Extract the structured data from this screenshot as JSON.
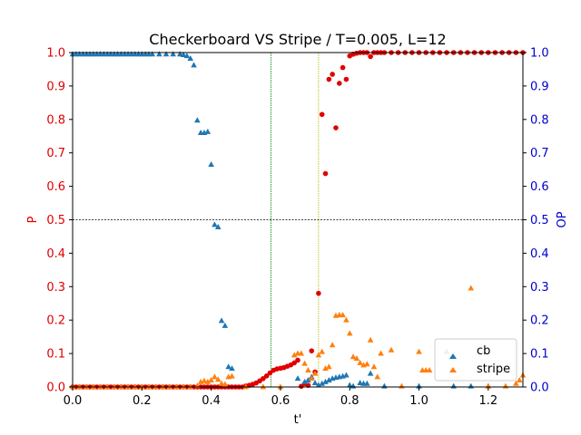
{
  "chart_data": {
    "type": "scatter",
    "title": "Checkerboard VS Stripe / T=0.005, L=12",
    "xlabel": "t'",
    "ylabel_left": "P",
    "ylabel_right": "OP",
    "xlim": [
      0,
      1.3
    ],
    "ylim_left": [
      0,
      1
    ],
    "ylim_right": [
      0,
      1
    ],
    "x_ticks": [
      "0.0",
      "0.2",
      "0.4",
      "0.6",
      "0.8",
      "1.0",
      "1.2"
    ],
    "x_tick_values": [
      0,
      0.2,
      0.4,
      0.6,
      0.8,
      1.0,
      1.2
    ],
    "y_ticks": [
      "0.0",
      "0.1",
      "0.2",
      "0.3",
      "0.4",
      "0.5",
      "0.6",
      "0.7",
      "0.8",
      "0.9",
      "1.0"
    ],
    "y_tick_values": [
      0,
      0.1,
      0.2,
      0.3,
      0.4,
      0.5,
      0.6,
      0.7,
      0.8,
      0.9,
      1.0
    ],
    "grid": false,
    "legend": {
      "placement": "lower-right",
      "entries": [
        "cb",
        "stripe"
      ]
    },
    "colors": {
      "P": "#e00000",
      "OP_axis": "#0000cc",
      "cb": "#1f77b4",
      "stripe": "#ff7f0e",
      "hline": "#000000",
      "vline_green": "#008000",
      "vline_olive": "#b5b500"
    },
    "reference_lines": {
      "hline_y": 0.5,
      "vline_green_x": 0.573,
      "vline_olive_x": 0.71
    },
    "series": [
      {
        "name": "",
        "axis": "left",
        "marker": "circle",
        "color": "#e00000",
        "points": [
          [
            0.0,
            0
          ],
          [
            0.01,
            0
          ],
          [
            0.02,
            0
          ],
          [
            0.03,
            0
          ],
          [
            0.04,
            0
          ],
          [
            0.05,
            0
          ],
          [
            0.06,
            0
          ],
          [
            0.07,
            0
          ],
          [
            0.08,
            0
          ],
          [
            0.09,
            0
          ],
          [
            0.1,
            0
          ],
          [
            0.11,
            0
          ],
          [
            0.12,
            0
          ],
          [
            0.13,
            0
          ],
          [
            0.14,
            0
          ],
          [
            0.15,
            0
          ],
          [
            0.16,
            0
          ],
          [
            0.17,
            0
          ],
          [
            0.18,
            0
          ],
          [
            0.19,
            0
          ],
          [
            0.2,
            0
          ],
          [
            0.21,
            0
          ],
          [
            0.22,
            0
          ],
          [
            0.23,
            0
          ],
          [
            0.24,
            0
          ],
          [
            0.25,
            0
          ],
          [
            0.26,
            0
          ],
          [
            0.27,
            0
          ],
          [
            0.28,
            0
          ],
          [
            0.29,
            0
          ],
          [
            0.3,
            0
          ],
          [
            0.31,
            0
          ],
          [
            0.32,
            0
          ],
          [
            0.33,
            0
          ],
          [
            0.34,
            0
          ],
          [
            0.35,
            0
          ],
          [
            0.36,
            0
          ],
          [
            0.37,
            0
          ],
          [
            0.38,
            0
          ],
          [
            0.39,
            0
          ],
          [
            0.4,
            0
          ],
          [
            0.41,
            0
          ],
          [
            0.42,
            0
          ],
          [
            0.43,
            0
          ],
          [
            0.44,
            0
          ],
          [
            0.45,
            0
          ],
          [
            0.46,
            0
          ],
          [
            0.47,
            0
          ],
          [
            0.48,
            0
          ],
          [
            0.49,
            0
          ],
          [
            0.5,
            0.003
          ],
          [
            0.51,
            0.005
          ],
          [
            0.52,
            0.008
          ],
          [
            0.53,
            0.012
          ],
          [
            0.54,
            0.018
          ],
          [
            0.55,
            0.025
          ],
          [
            0.56,
            0.033
          ],
          [
            0.57,
            0.042
          ],
          [
            0.58,
            0.05
          ],
          [
            0.59,
            0.054
          ],
          [
            0.6,
            0.056
          ],
          [
            0.61,
            0.058
          ],
          [
            0.62,
            0.062
          ],
          [
            0.63,
            0.066
          ],
          [
            0.64,
            0.072
          ],
          [
            0.65,
            0.08
          ],
          [
            0.66,
            0.002
          ],
          [
            0.67,
            0.01
          ],
          [
            0.68,
            0.005
          ],
          [
            0.69,
            0.108
          ],
          [
            0.7,
            0.045
          ],
          [
            0.71,
            0.28
          ],
          [
            0.72,
            0.815
          ],
          [
            0.73,
            0.638
          ],
          [
            0.74,
            0.92
          ],
          [
            0.75,
            0.935
          ],
          [
            0.76,
            0.775
          ],
          [
            0.77,
            0.908
          ],
          [
            0.78,
            0.955
          ],
          [
            0.79,
            0.92
          ],
          [
            0.8,
            0.99
          ],
          [
            0.81,
            0.995
          ],
          [
            0.82,
            0.998
          ],
          [
            0.83,
            1.0
          ],
          [
            0.84,
            1.0
          ],
          [
            0.85,
            1.0
          ],
          [
            0.86,
            0.988
          ],
          [
            0.87,
            1.0
          ],
          [
            0.88,
            1.0
          ],
          [
            0.89,
            1.0
          ],
          [
            0.9,
            1.0
          ],
          [
            0.92,
            1.0
          ],
          [
            0.94,
            1.0
          ],
          [
            0.96,
            1.0
          ],
          [
            0.98,
            1.0
          ],
          [
            1.0,
            1.0
          ],
          [
            1.02,
            1.0
          ],
          [
            1.04,
            1.0
          ],
          [
            1.06,
            1.0
          ],
          [
            1.08,
            1.0
          ],
          [
            1.1,
            1.0
          ],
          [
            1.12,
            1.0
          ],
          [
            1.14,
            1.0
          ],
          [
            1.16,
            1.0
          ],
          [
            1.18,
            1.0
          ],
          [
            1.2,
            1.0
          ],
          [
            1.22,
            1.0
          ],
          [
            1.24,
            1.0
          ],
          [
            1.26,
            1.0
          ],
          [
            1.28,
            1.0
          ],
          [
            1.3,
            1.0
          ]
        ]
      },
      {
        "name": "cb",
        "axis": "right",
        "marker": "triangle",
        "color": "#1f77b4",
        "points": [
          [
            0.0,
            0.995
          ],
          [
            0.01,
            0.995
          ],
          [
            0.02,
            0.995
          ],
          [
            0.03,
            0.995
          ],
          [
            0.04,
            0.995
          ],
          [
            0.05,
            0.995
          ],
          [
            0.06,
            0.995
          ],
          [
            0.07,
            0.995
          ],
          [
            0.08,
            0.995
          ],
          [
            0.09,
            0.995
          ],
          [
            0.1,
            0.995
          ],
          [
            0.11,
            0.995
          ],
          [
            0.12,
            0.995
          ],
          [
            0.13,
            0.995
          ],
          [
            0.14,
            0.995
          ],
          [
            0.15,
            0.995
          ],
          [
            0.16,
            0.995
          ],
          [
            0.17,
            0.995
          ],
          [
            0.18,
            0.995
          ],
          [
            0.19,
            0.995
          ],
          [
            0.2,
            0.995
          ],
          [
            0.21,
            0.995
          ],
          [
            0.22,
            0.995
          ],
          [
            0.23,
            0.995
          ],
          [
            0.25,
            0.995
          ],
          [
            0.27,
            0.995
          ],
          [
            0.29,
            0.995
          ],
          [
            0.31,
            0.995
          ],
          [
            0.32,
            0.993
          ],
          [
            0.33,
            0.99
          ],
          [
            0.34,
            0.982
          ],
          [
            0.35,
            0.962
          ],
          [
            0.36,
            0.797
          ],
          [
            0.37,
            0.76
          ],
          [
            0.38,
            0.76
          ],
          [
            0.39,
            0.763
          ],
          [
            0.4,
            0.665
          ],
          [
            0.41,
            0.485
          ],
          [
            0.42,
            0.478
          ],
          [
            0.43,
            0.198
          ],
          [
            0.44,
            0.183
          ],
          [
            0.45,
            0.06
          ],
          [
            0.46,
            0.055
          ],
          [
            0.65,
            0.025
          ],
          [
            0.67,
            0.015
          ],
          [
            0.68,
            0.02
          ],
          [
            0.69,
            0.03
          ],
          [
            0.7,
            0.012
          ],
          [
            0.71,
            0.005
          ],
          [
            0.72,
            0.01
          ],
          [
            0.73,
            0.015
          ],
          [
            0.74,
            0.02
          ],
          [
            0.75,
            0.025
          ],
          [
            0.76,
            0.028
          ],
          [
            0.77,
            0.03
          ],
          [
            0.78,
            0.032
          ],
          [
            0.79,
            0.035
          ],
          [
            0.8,
            0.005
          ],
          [
            0.81,
            0.002
          ],
          [
            0.83,
            0.012
          ],
          [
            0.84,
            0.01
          ],
          [
            0.85,
            0.01
          ],
          [
            0.86,
            0.04
          ],
          [
            0.9,
            0.002
          ],
          [
            1.0,
            0.002
          ],
          [
            1.1,
            0.002
          ],
          [
            1.15,
            0.002
          ],
          [
            1.2,
            0.002
          ]
        ]
      },
      {
        "name": "stripe",
        "axis": "right",
        "marker": "triangle",
        "color": "#ff7f0e",
        "points": [
          [
            0.0,
            0
          ],
          [
            0.02,
            0
          ],
          [
            0.04,
            0
          ],
          [
            0.06,
            0
          ],
          [
            0.08,
            0
          ],
          [
            0.1,
            0
          ],
          [
            0.12,
            0
          ],
          [
            0.14,
            0
          ],
          [
            0.16,
            0
          ],
          [
            0.18,
            0
          ],
          [
            0.2,
            0
          ],
          [
            0.22,
            0
          ],
          [
            0.24,
            0
          ],
          [
            0.26,
            0
          ],
          [
            0.28,
            0
          ],
          [
            0.3,
            0
          ],
          [
            0.32,
            0
          ],
          [
            0.34,
            0
          ],
          [
            0.36,
            0.003
          ],
          [
            0.37,
            0.015
          ],
          [
            0.38,
            0.018
          ],
          [
            0.39,
            0.015
          ],
          [
            0.4,
            0.02
          ],
          [
            0.41,
            0.03
          ],
          [
            0.42,
            0.022
          ],
          [
            0.43,
            0.01
          ],
          [
            0.44,
            0.008
          ],
          [
            0.45,
            0.03
          ],
          [
            0.46,
            0.032
          ],
          [
            0.5,
            0
          ],
          [
            0.55,
            0
          ],
          [
            0.6,
            0
          ],
          [
            0.64,
            0.095
          ],
          [
            0.65,
            0.1
          ],
          [
            0.66,
            0.1
          ],
          [
            0.67,
            0.07
          ],
          [
            0.68,
            0.05
          ],
          [
            0.69,
            0.025
          ],
          [
            0.7,
            0.04
          ],
          [
            0.71,
            0.095
          ],
          [
            0.72,
            0.105
          ],
          [
            0.73,
            0.055
          ],
          [
            0.74,
            0.06
          ],
          [
            0.75,
            0.125
          ],
          [
            0.76,
            0.213
          ],
          [
            0.77,
            0.215
          ],
          [
            0.78,
            0.215
          ],
          [
            0.79,
            0.2
          ],
          [
            0.8,
            0.16
          ],
          [
            0.81,
            0.09
          ],
          [
            0.82,
            0.085
          ],
          [
            0.83,
            0.072
          ],
          [
            0.84,
            0.065
          ],
          [
            0.85,
            0.068
          ],
          [
            0.86,
            0.14
          ],
          [
            0.87,
            0.06
          ],
          [
            0.88,
            0.03
          ],
          [
            0.89,
            0.1
          ],
          [
            0.92,
            0.11
          ],
          [
            0.95,
            0.002
          ],
          [
            1.0,
            0.105
          ],
          [
            1.01,
            0.05
          ],
          [
            1.02,
            0.05
          ],
          [
            1.03,
            0.05
          ],
          [
            1.08,
            0.105
          ],
          [
            1.15,
            0.295
          ],
          [
            1.2,
            0.002
          ],
          [
            1.25,
            0.002
          ],
          [
            1.28,
            0.01
          ],
          [
            1.29,
            0.02
          ],
          [
            1.3,
            0.035
          ]
        ]
      }
    ]
  }
}
